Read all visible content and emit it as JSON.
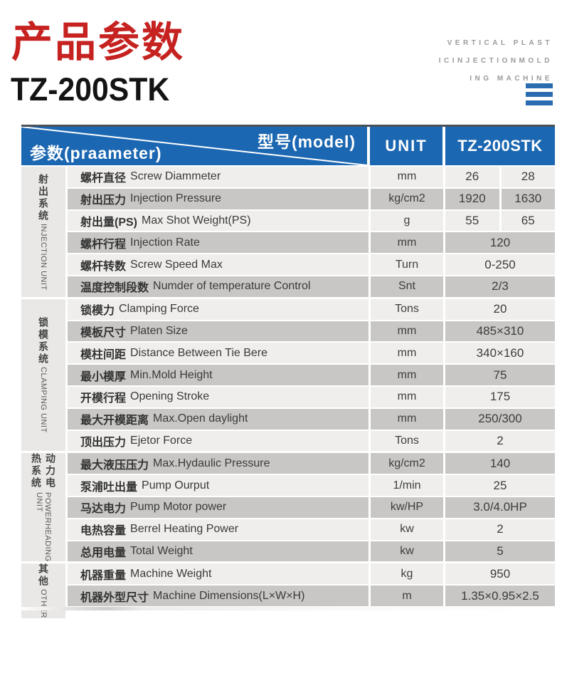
{
  "header": {
    "title_cn": "产品参数",
    "model": "TZ-200STK",
    "tagline_lines": [
      "VERTICAL PLAST",
      "ICINJECTIONMOLD",
      "ING MACHINE"
    ]
  },
  "colors": {
    "accent_red": "#c52220",
    "header_blue": "#1c67b1",
    "menu_icon_blue": "#2a6cb0",
    "row_light": "#efeeec",
    "row_dark": "#c8c7c5",
    "section_bg": "#e9e8e6",
    "tagline_gray": "#9a9a9a"
  },
  "table": {
    "corner": {
      "top_label": "型号(model)",
      "bottom_label": "参数(praameter)"
    },
    "unit_header": "UNIT",
    "model_header": "TZ-200STK",
    "sections": [
      {
        "name_cn": "射出系统",
        "name_en": "INJECTION UNIT",
        "rows": [
          {
            "label_cn": "螺杆直径",
            "label_en": "Screw Diammeter",
            "unit": "mm",
            "values": [
              "26",
              "28"
            ]
          },
          {
            "label_cn": "射出压力",
            "label_en": "Injection Pressure",
            "unit": "kg/cm2",
            "values": [
              "1920",
              "1630"
            ]
          },
          {
            "label_cn": "射出量(PS)",
            "label_en": "Max Shot Weight(PS)",
            "unit": "g",
            "values": [
              "55",
              "65"
            ]
          },
          {
            "label_cn": "螺杆行程",
            "label_en": "Injection Rate",
            "unit": "mm",
            "values": [
              "120"
            ]
          },
          {
            "label_cn": "螺杆转数",
            "label_en": "Screw Speed Max",
            "unit": "Turn",
            "values": [
              "0-250"
            ]
          },
          {
            "label_cn": "温度控制段数",
            "label_en": "Numder of temperature Control",
            "unit": "Snt",
            "values": [
              "2/3"
            ]
          }
        ]
      },
      {
        "name_cn": "锁模系统",
        "name_en": "CLAMPING UNIT",
        "rows": [
          {
            "label_cn": "锁模力",
            "label_en": "Clamping Force",
            "unit": "Tons",
            "values": [
              "20"
            ]
          },
          {
            "label_cn": "模板尺寸",
            "label_en": "Platen Size",
            "unit": "mm",
            "values": [
              "485×310"
            ]
          },
          {
            "label_cn": "模柱间距",
            "label_en": "Distance Between Tie Bere",
            "unit": "mm",
            "values": [
              "340×160"
            ]
          },
          {
            "label_cn": "最小模厚",
            "label_en": "Min.Mold Height",
            "unit": "mm",
            "values": [
              "75"
            ]
          },
          {
            "label_cn": "开模行程",
            "label_en": "Opening Stroke",
            "unit": "mm",
            "values": [
              "175"
            ]
          },
          {
            "label_cn": "最大开模距离",
            "label_en": "Max.Open daylight",
            "unit": "mm",
            "values": [
              "250/300"
            ]
          },
          {
            "label_cn": "顶出压力",
            "label_en": "Ejetor Force",
            "unit": "Tons",
            "values": [
              "2"
            ]
          }
        ]
      },
      {
        "name_cn": "动力电热系统",
        "name_en": "POWERHEADING UNIT",
        "rows": [
          {
            "label_cn": "最大液压压力",
            "label_en": "Max.Hydaulic Pressure",
            "unit": "kg/cm2",
            "values": [
              "140"
            ]
          },
          {
            "label_cn": "泵浦吐出量",
            "label_en": "Pump Ourput",
            "unit": "1/min",
            "values": [
              "25"
            ]
          },
          {
            "label_cn": "马达电力",
            "label_en": "Pump Motor power",
            "unit": "kw/HP",
            "values": [
              "3.0/4.0HP"
            ]
          },
          {
            "label_cn": "电热容量",
            "label_en": "Berrel Heating Power",
            "unit": "kw",
            "values": [
              "2"
            ]
          },
          {
            "label_cn": "总用电量",
            "label_en": "Total Weight",
            "unit": "kw",
            "values": [
              "5"
            ]
          }
        ]
      },
      {
        "name_cn": "其他",
        "name_en": "OTHER",
        "rows": [
          {
            "label_cn": "机器重量",
            "label_en": "Machine Weight",
            "unit": "kg",
            "values": [
              "950"
            ]
          },
          {
            "label_cn": "机器外型尺寸",
            "label_en": "Machine Dimensions(L×W×H)",
            "unit": "m",
            "values": [
              "1.35×0.95×2.5"
            ]
          }
        ]
      }
    ]
  }
}
